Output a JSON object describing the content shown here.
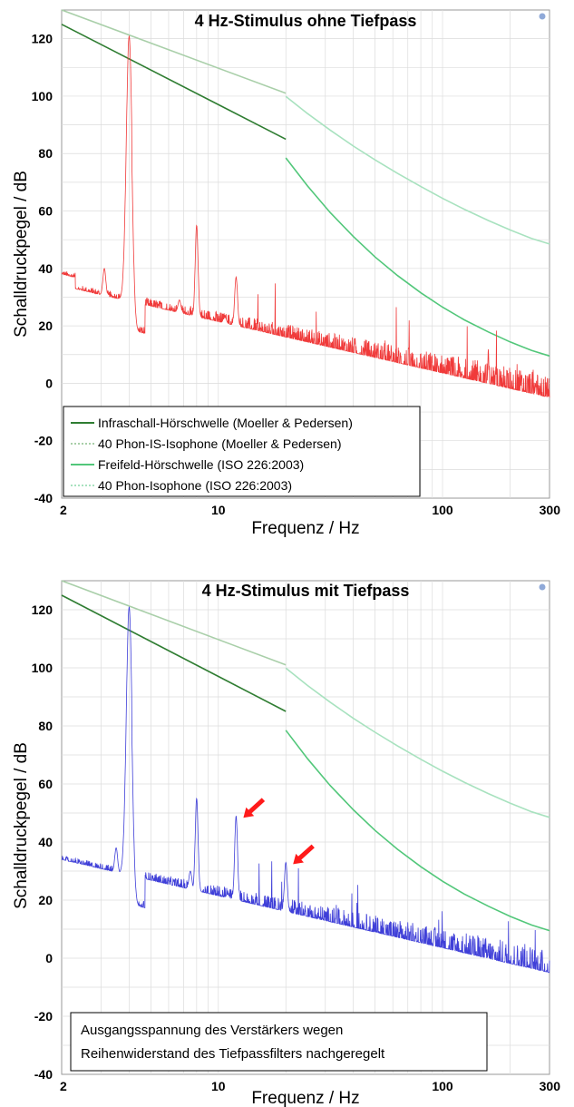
{
  "colors": {
    "is_threshold": "#2f7d32",
    "is_isophone": "#a9cfa9",
    "ff_threshold": "#52c77a",
    "ff_isophone": "#a8e2bf",
    "spectrum_top": "#f03a3a",
    "spectrum_bottom": "#3f3fd8",
    "arrow": "#ff1a1a",
    "grid": "#dcdcdc"
  },
  "chart_data": [
    {
      "type": "line",
      "title": "4 Hz-Stimulus ohne Tiefpass",
      "xlabel": "Frequenz / Hz",
      "ylabel": "Schalldruckpegel / dB",
      "xscale": "log",
      "xlim": [
        2,
        300
      ],
      "ylim": [
        -40,
        130
      ],
      "x_tick_labels": [
        "2",
        "10",
        "100",
        "300"
      ],
      "y_tick_labels": [
        "120",
        "100",
        "80",
        "60",
        "40",
        "20",
        "0",
        "-20",
        "-40"
      ],
      "grid": true,
      "legend": {
        "placement": "bottom-left",
        "entries": [
          "Infraschall-Hörschwelle (Moeller & Pedersen)",
          "40 Phon-IS-Isophone (Moeller & Pedersen)",
          "Freifeld-Hörschwelle (ISO 226:2003)",
          "40 Phon-Isophone (ISO 226:2003)"
        ]
      },
      "series": [
        {
          "name": "Infraschall-Hörschwelle (Moeller & Pedersen)",
          "x": [
            2,
            20
          ],
          "y": [
            125,
            85
          ]
        },
        {
          "name": "40 Phon-IS-Isophone (Moeller & Pedersen)",
          "x": [
            2,
            20
          ],
          "y": [
            130,
            101
          ]
        },
        {
          "name": "Freifeld-Hörschwelle (ISO 226:2003)",
          "x": [
            20,
            25,
            31.5,
            40,
            50,
            63,
            80,
            100,
            125,
            160,
            200,
            250,
            300
          ],
          "y": [
            78.5,
            68.7,
            59.5,
            51.1,
            44.0,
            37.5,
            31.5,
            26.5,
            22.1,
            17.9,
            14.4,
            11.4,
            9.5
          ]
        },
        {
          "name": "40 Phon-Isophone (ISO 226:2003)",
          "x": [
            20,
            25,
            31.5,
            40,
            50,
            63,
            80,
            100,
            125,
            160,
            200,
            250,
            300
          ],
          "y": [
            99.9,
            93.9,
            88.2,
            82.6,
            77.8,
            73.1,
            68.5,
            64.4,
            60.6,
            56.7,
            53.4,
            50.4,
            48.5
          ]
        }
      ],
      "spectrum": {
        "peaks": [
          {
            "x": 3.1,
            "y": 40
          },
          {
            "x": 4,
            "y": 121
          },
          {
            "x": 6.7,
            "y": 29
          },
          {
            "x": 8,
            "y": 55
          },
          {
            "x": 10.7,
            "y": 23
          },
          {
            "x": 12,
            "y": 37
          },
          {
            "x": 160,
            "y": 12
          },
          {
            "x": 260,
            "y": 0
          }
        ]
      }
    },
    {
      "type": "line",
      "title": "4 Hz-Stimulus mit Tiefpass",
      "xlabel": "Frequenz / Hz",
      "ylabel": "Schalldruckpegel / dB",
      "xscale": "log",
      "xlim": [
        2,
        300
      ],
      "ylim": [
        -40,
        130
      ],
      "x_tick_labels": [
        "2",
        "10",
        "100",
        "300"
      ],
      "y_tick_labels": [
        "120",
        "100",
        "80",
        "60",
        "40",
        "20",
        "0",
        "-20",
        "-40"
      ],
      "grid": true,
      "series": [
        {
          "x": [
            2,
            20
          ],
          "y": [
            125,
            85
          ]
        },
        {
          "x": [
            2,
            20
          ],
          "y": [
            130,
            101
          ]
        },
        {
          "x": [
            20,
            25,
            31.5,
            40,
            50,
            63,
            80,
            100,
            125,
            160,
            200,
            250,
            300
          ],
          "y": [
            78.5,
            68.7,
            59.5,
            51.1,
            44.0,
            37.5,
            31.5,
            26.5,
            22.1,
            17.9,
            14.4,
            11.4,
            9.5
          ]
        },
        {
          "x": [
            20,
            25,
            31.5,
            40,
            50,
            63,
            80,
            100,
            125,
            160,
            200,
            250,
            300
          ],
          "y": [
            99.9,
            93.9,
            88.2,
            82.6,
            77.8,
            73.1,
            68.5,
            64.4,
            60.6,
            56.7,
            53.4,
            50.4,
            48.5
          ]
        }
      ],
      "spectrum": {
        "peaks": [
          {
            "x": 3.5,
            "y": 38
          },
          {
            "x": 4,
            "y": 121
          },
          {
            "x": 7.5,
            "y": 30
          },
          {
            "x": 8,
            "y": 55
          },
          {
            "x": 11,
            "y": 22
          },
          {
            "x": 12,
            "y": 49
          },
          {
            "x": 14,
            "y": 17
          },
          {
            "x": 20,
            "y": 33
          },
          {
            "x": 26,
            "y": 12
          },
          {
            "x": 29,
            "y": 10
          },
          {
            "x": 33,
            "y": 8
          },
          {
            "x": 160,
            "y": 2
          }
        ]
      },
      "annotation": "Ausgangsspannung des Verstärkers wegen Reihenwiderstand des Tiefpassfilters nachgeregelt",
      "annotation_lines": [
        "Ausgangsspannung des Verstärkers wegen",
        "Reihenwiderstand des Tiefpassfilters nachgeregelt"
      ],
      "arrows_point_to": [
        {
          "x": 12,
          "y": 49
        },
        {
          "x": 20,
          "y": 33
        }
      ]
    }
  ]
}
